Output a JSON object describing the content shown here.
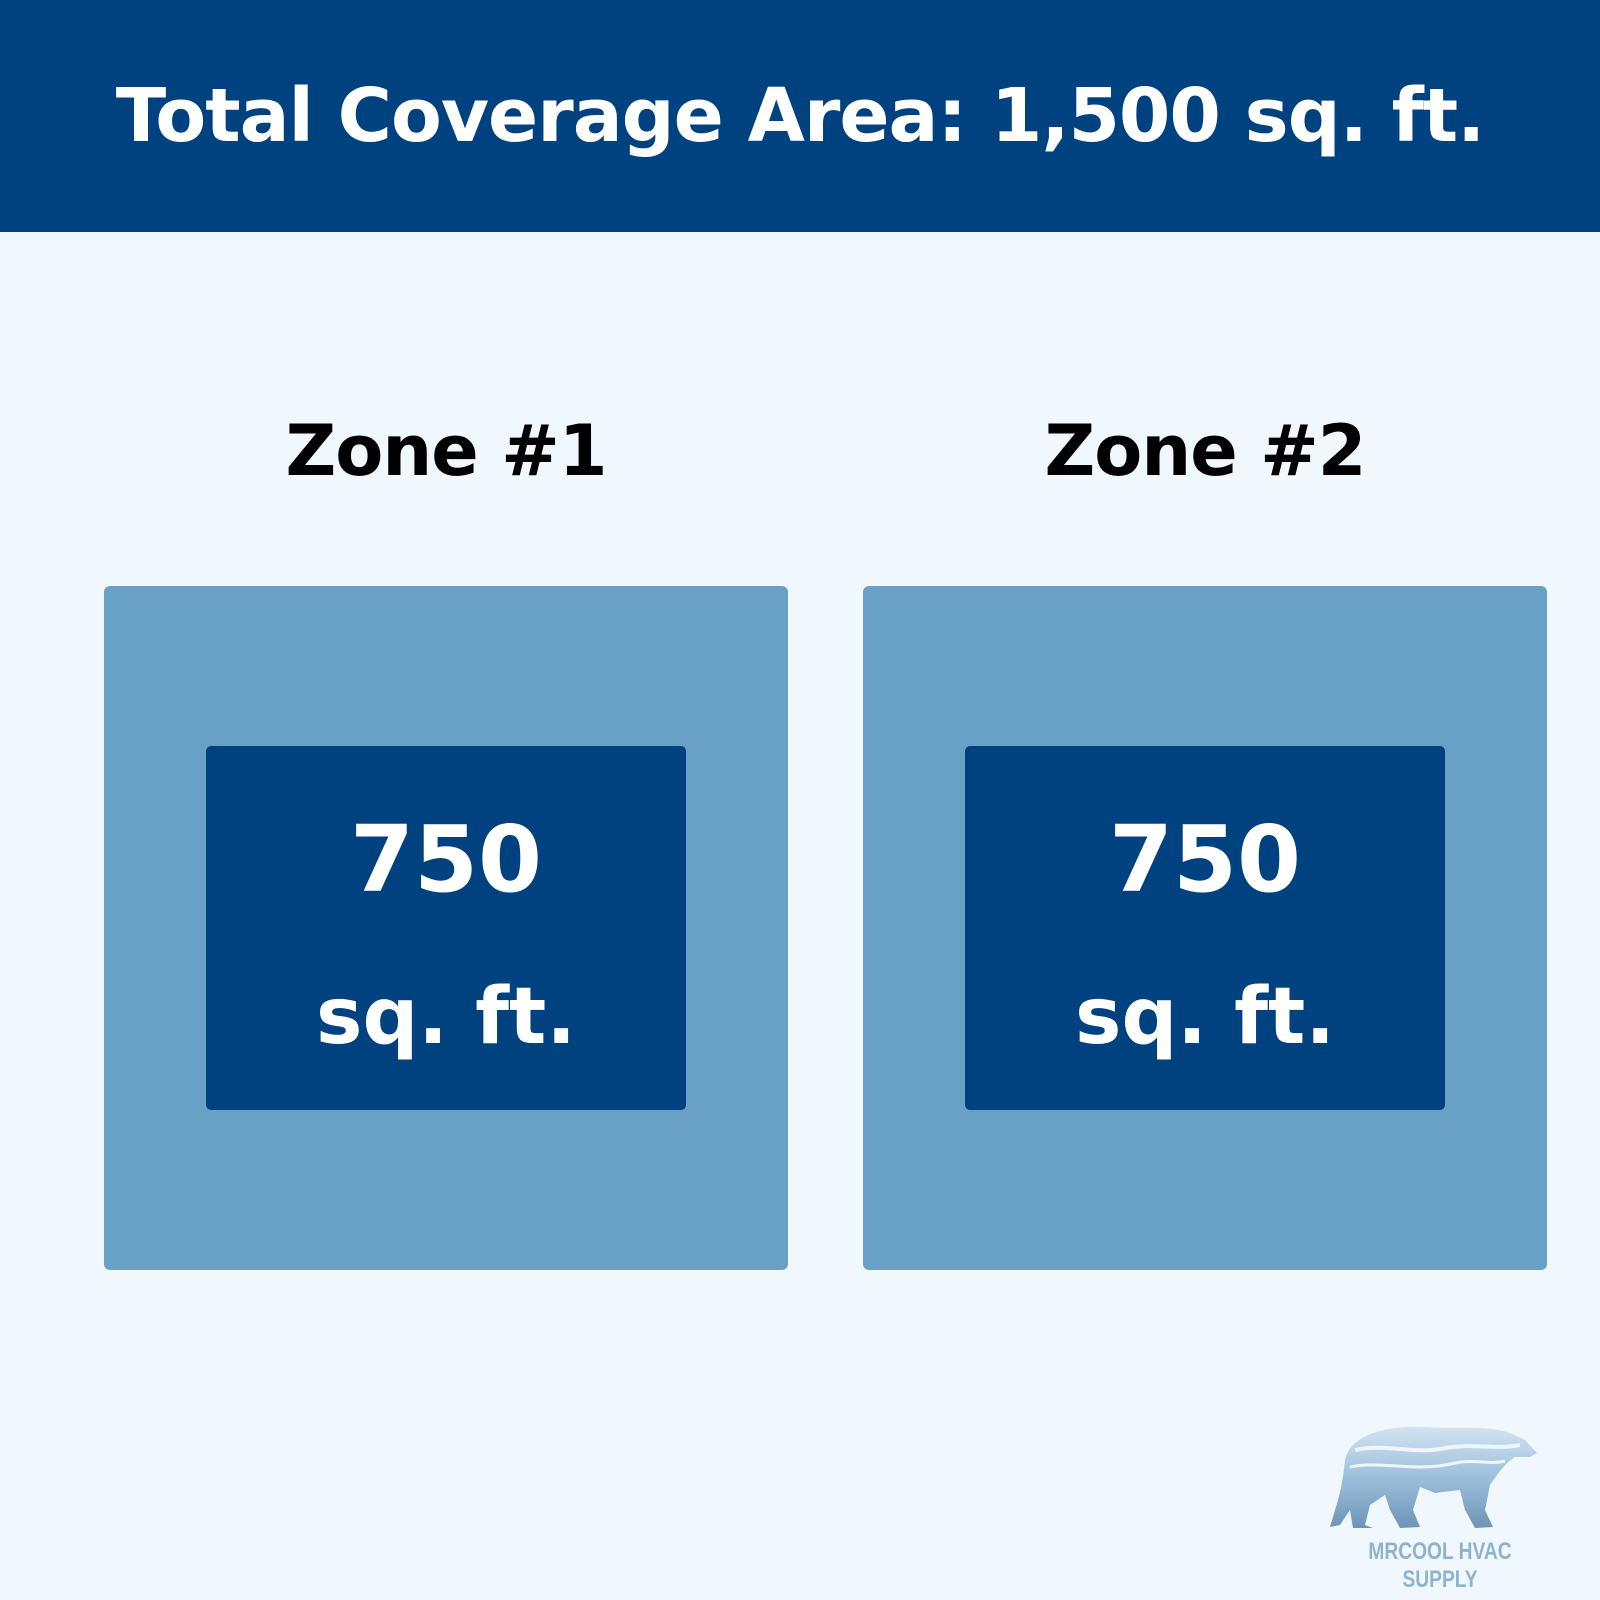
{
  "header": {
    "title": "Total Coverage Area: 1,500 sq. ft."
  },
  "zones": [
    {
      "title": "Zone #1",
      "value": "750",
      "unit": "sq. ft."
    },
    {
      "title": "Zone #2",
      "value": "750",
      "unit": "sq. ft."
    }
  ],
  "logo": {
    "text": "MRCOOL HVAC SUPPLY",
    "icon": "polar-bear-icon"
  },
  "colors": {
    "primary": "#00417f",
    "zone_box": "#69a1c6",
    "background": "#f1f8fd"
  }
}
